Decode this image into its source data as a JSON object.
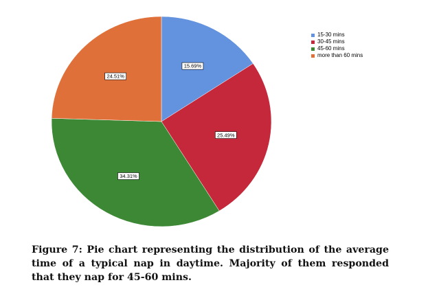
{
  "chart_data": {
    "type": "pie",
    "categories": [
      "15-30 mins",
      "30-45 mins",
      "45-60 mins",
      "more than 60 mins"
    ],
    "values": [
      15.69,
      25.49,
      34.31,
      24.51
    ],
    "value_labels": [
      "15.69%",
      "25.49%",
      "34.31%",
      "24.51%"
    ],
    "colors": [
      "#6393DE",
      "#C4283A",
      "#3C8834",
      "#E07039"
    ],
    "legend_position": "top-right",
    "start_angle_deg": 0,
    "direction": "clockwise",
    "title": ""
  },
  "caption": "Figure 7: Pie chart representing the distribution of the average time of a typical nap in daytime. Majority of them responded that they nap for 45-60 mins."
}
